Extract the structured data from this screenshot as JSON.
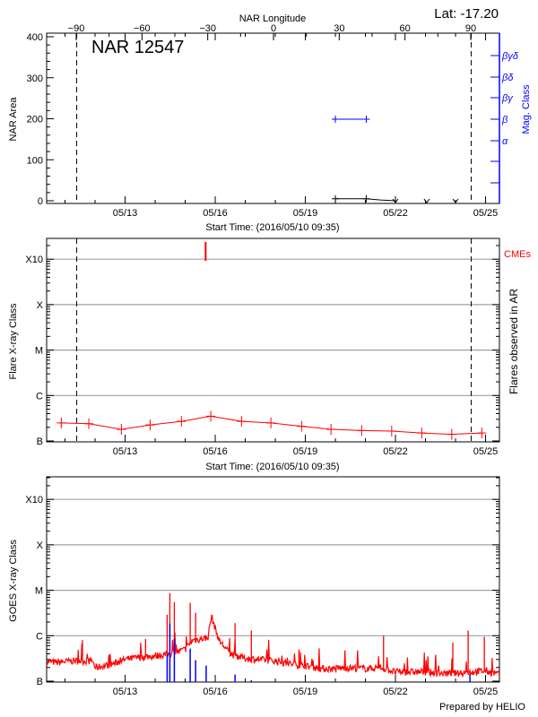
{
  "colors": {
    "flare": "#ff0000",
    "magclass": "#0000ff",
    "area": "#000000",
    "grid": "#a0a0a0"
  },
  "start_time": "2016/05/10 09:35",
  "time_ticks": [
    "05/13",
    "05/16",
    "05/19",
    "05/22",
    "05/25"
  ],
  "footer": "Prepared by HELIO",
  "chart_data": [
    {
      "type": "line",
      "title": "NAR 12547",
      "annotation": "Lat: -17.20",
      "xlabel": "Start Time: (2016/05/10 09:35)",
      "x2label": "NAR Longitude",
      "x2_ticks": [
        "-90",
        "-60",
        "-30",
        "0",
        "30",
        "60",
        "90"
      ],
      "ylabel": "NAR Area",
      "ylim": [
        0,
        400
      ],
      "y_ticks": [
        "0",
        "100",
        "200",
        "300",
        "400"
      ],
      "y2label": "Mag. Class",
      "y2_ticks": [
        "α",
        "β",
        "βγ",
        "βδ",
        "βγδ"
      ],
      "limb_lines": [
        "05/11 09:20",
        "05/24 12:30"
      ],
      "area_series": [
        {
          "t": "05/20 00:00",
          "v": 5
        },
        {
          "t": "05/21 00:40",
          "v": 5
        },
        {
          "t": "05/21 12:00",
          "v": 2
        },
        {
          "t": "05/22 00:00",
          "v": 0
        }
      ],
      "area_markers_zero": [
        "05/22 00:00",
        "05/23 01:00",
        "05/24 00:00"
      ],
      "magclass_series": [
        {
          "t": "05/20 00:00",
          "class": "β"
        },
        {
          "t": "05/21 00:40",
          "class": "β"
        }
      ]
    },
    {
      "type": "line",
      "xlabel": "Start Time: (2016/05/10 09:35)",
      "ylabel": "Flare X-ray Class",
      "y2label": "Flares observed in AR",
      "y_ticks": [
        "B",
        "C",
        "M",
        "X",
        "X10"
      ],
      "yscale": "log",
      "ylim": [
        1e-07,
        0.0026
      ],
      "grid": true,
      "legend": "CMEs",
      "limb_lines": [
        "05/11 09:20",
        "05/24 12:30"
      ],
      "cmes": [
        "05/15 16:20"
      ],
      "series": [
        {
          "t": "05/10 21:00",
          "v": 2.5e-07
        },
        {
          "t": "05/11 19:00",
          "v": 2.4e-07
        },
        {
          "t": "05/12 21:00",
          "v": 1.8e-07
        },
        {
          "t": "05/13 20:00",
          "v": 2.25e-07
        },
        {
          "t": "05/14 21:00",
          "v": 2.7e-07
        },
        {
          "t": "05/15 20:30",
          "v": 3.5e-07
        },
        {
          "t": "05/16 21:00",
          "v": 2.7e-07
        },
        {
          "t": "05/17 20:30",
          "v": 2.5e-07
        },
        {
          "t": "05/18 21:00",
          "v": 2.1e-07
        },
        {
          "t": "05/19 20:30",
          "v": 1.8e-07
        },
        {
          "t": "05/20 21:00",
          "v": 1.7e-07
        },
        {
          "t": "05/21 21:00",
          "v": 1.65e-07
        },
        {
          "t": "05/22 21:00",
          "v": 1.5e-07
        },
        {
          "t": "05/23 21:00",
          "v": 1.4e-07
        },
        {
          "t": "05/24 21:00",
          "v": 1.5e-07
        }
      ]
    },
    {
      "type": "line",
      "ylabel": "GOES X-ray Class",
      "y_ticks": [
        "B",
        "C",
        "M",
        "X",
        "X10"
      ],
      "yscale": "log",
      "ylim": [
        1e-07,
        0.0026
      ],
      "grid": true,
      "background": [
        {
          "t": "05/10 09:35",
          "v": 2.7e-07
        },
        {
          "t": "05/10 18:00",
          "v": 2.6e-07
        },
        {
          "t": "05/11 06:00",
          "v": 2.8e-07
        },
        {
          "t": "05/11 22:00",
          "v": 2.8e-07
        },
        {
          "t": "05/12 00:00",
          "v": 2e-07
        },
        {
          "t": "05/12 12:00",
          "v": 2.3e-07
        },
        {
          "t": "05/13 00:00",
          "v": 3e-07
        },
        {
          "t": "05/13 12:00",
          "v": 3.4e-07
        },
        {
          "t": "05/14 00:00",
          "v": 3.6e-07
        },
        {
          "t": "05/14 12:00",
          "v": 4e-07
        },
        {
          "t": "05/15 00:00",
          "v": 5e-07
        },
        {
          "t": "05/15 06:00",
          "v": 8e-07
        },
        {
          "t": "05/15 18:00",
          "v": 9e-07
        },
        {
          "t": "05/15 21:00",
          "v": 2.7e-06
        },
        {
          "t": "05/16 03:00",
          "v": 8e-07
        },
        {
          "t": "05/16 12:00",
          "v": 4e-07
        },
        {
          "t": "05/17 00:00",
          "v": 3.2e-07
        },
        {
          "t": "05/17 12:00",
          "v": 3e-07
        },
        {
          "t": "05/18 00:00",
          "v": 2.8e-07
        },
        {
          "t": "05/18 12:00",
          "v": 2.4e-07
        },
        {
          "t": "05/19 00:00",
          "v": 2.2e-07
        },
        {
          "t": "05/19 12:00",
          "v": 1.9e-07
        },
        {
          "t": "05/20 00:00",
          "v": 1.9e-07
        },
        {
          "t": "05/20 12:00",
          "v": 2e-07
        },
        {
          "t": "05/21 00:00",
          "v": 1.9e-07
        },
        {
          "t": "05/21 12:00",
          "v": 2e-07
        },
        {
          "t": "05/22 00:00",
          "v": 1.6e-07
        },
        {
          "t": "05/22 12:00",
          "v": 1.6e-07
        },
        {
          "t": "05/23 00:00",
          "v": 1.6e-07
        },
        {
          "t": "05/23 12:00",
          "v": 1.5e-07
        },
        {
          "t": "05/24 00:00",
          "v": 1.5e-07
        },
        {
          "t": "05/24 12:00",
          "v": 1.6e-07
        },
        {
          "t": "05/25 00:00",
          "v": 1.7e-07
        },
        {
          "t": "05/25 11:00",
          "v": 1.4e-07
        }
      ],
      "spikes": [
        {
          "t": "05/11 13:55",
          "v": 8e-07
        },
        {
          "t": "05/13 16:20",
          "v": 8.5e-07
        },
        {
          "t": "05/14 09:35",
          "v": 2.9e-06
        },
        {
          "t": "05/14 11:45",
          "v": 8.7e-06
        },
        {
          "t": "05/14 15:20",
          "v": 5.5e-06
        },
        {
          "t": "05/15 04:00",
          "v": 5.3e-06
        },
        {
          "t": "05/15 08:20",
          "v": 3.2e-06
        },
        {
          "t": "05/16 15:50",
          "v": 1.9e-06
        },
        {
          "t": "05/17 04:50",
          "v": 1.3e-06
        },
        {
          "t": "05/18 18:55",
          "v": 5e-07
        },
        {
          "t": "05/21 14:30",
          "v": 1e-06
        },
        {
          "t": "05/23 21:50",
          "v": 7e-07
        },
        {
          "t": "05/24 10:05",
          "v": 1.3e-06
        },
        {
          "t": "05/24 23:00",
          "v": 9.5e-07
        }
      ],
      "flare_events": [
        {
          "t": "05/14 09:35",
          "v": 3.9e-07
        },
        {
          "t": "05/14 11:45",
          "v": 1.85e-06
        },
        {
          "t": "05/14 15:20",
          "v": 8.5e-07
        },
        {
          "t": "05/15 04:00",
          "v": 5.2e-07
        },
        {
          "t": "05/15 08:20",
          "v": 2.9e-07
        },
        {
          "t": "05/15 16:45",
          "v": 2.2e-07
        },
        {
          "t": "05/16 15:50",
          "v": 1.4e-07
        },
        {
          "t": "05/17 04:50",
          "v": 1.05e-07
        },
        {
          "t": "05/24 11:30",
          "v": 1.4e-07
        }
      ]
    }
  ]
}
